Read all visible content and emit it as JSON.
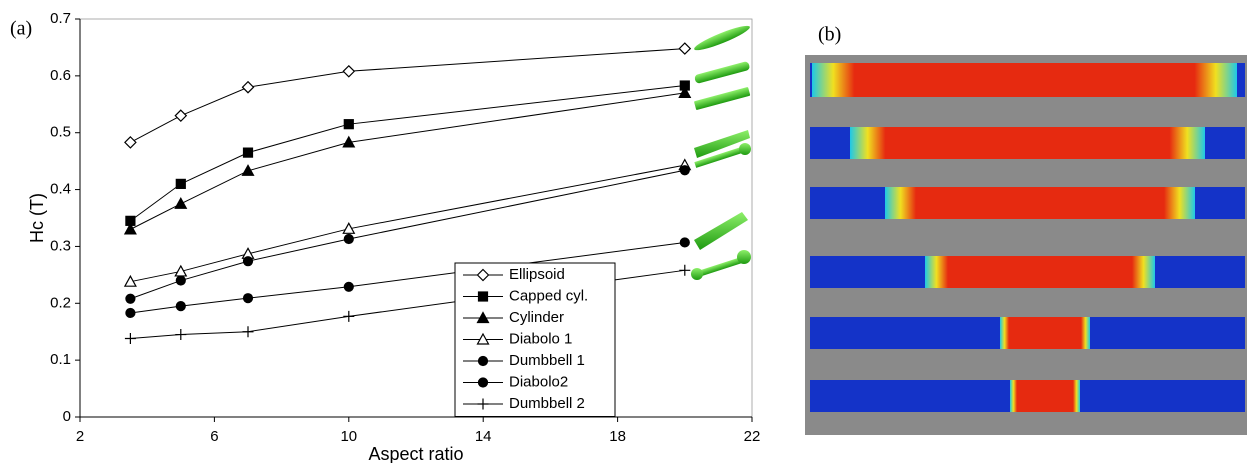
{
  "panels": {
    "a": "(a)",
    "b": "(b)"
  },
  "chart_data": {
    "type": "line",
    "x": [
      3.5,
      5,
      7,
      10,
      20
    ],
    "xlabel": "Aspect ratio",
    "ylabel": "Hc (T)",
    "xlim": [
      2,
      22
    ],
    "ylim": [
      0,
      0.7
    ],
    "xticks": [
      2,
      6,
      10,
      14,
      18,
      22
    ],
    "yticks": [
      0,
      0.1,
      0.2,
      0.3,
      0.4,
      0.5,
      0.6,
      0.7
    ],
    "series": [
      {
        "name": "Ellipsoid",
        "color": "#000000",
        "marker": "diamond-open",
        "values": [
          0.483,
          0.53,
          0.58,
          0.608,
          0.648
        ]
      },
      {
        "name": "Capped cyl.",
        "color": "#000000",
        "marker": "square",
        "values": [
          0.345,
          0.41,
          0.465,
          0.515,
          0.583
        ]
      },
      {
        "name": "Cylinder",
        "color": "#000000",
        "marker": "triangle",
        "values": [
          0.33,
          0.375,
          0.433,
          0.483,
          0.57
        ]
      },
      {
        "name": "Diabolo 1",
        "color": "#000000",
        "marker": "triangle-open",
        "values": [
          0.238,
          0.256,
          0.287,
          0.331,
          0.443
        ]
      },
      {
        "name": "Dumbbell 1",
        "color": "#000000",
        "marker": "circle",
        "values": [
          0.208,
          0.24,
          0.274,
          0.313,
          0.434
        ]
      },
      {
        "name": "Diabolo2",
        "color": "#000000",
        "marker": "circle",
        "values": [
          0.183,
          0.195,
          0.209,
          0.229,
          0.307
        ]
      },
      {
        "name": "Dumbbell 2",
        "color": "#000000",
        "marker": "plus",
        "values": [
          0.138,
          0.145,
          0.15,
          0.177,
          0.258
        ]
      }
    ]
  }
}
